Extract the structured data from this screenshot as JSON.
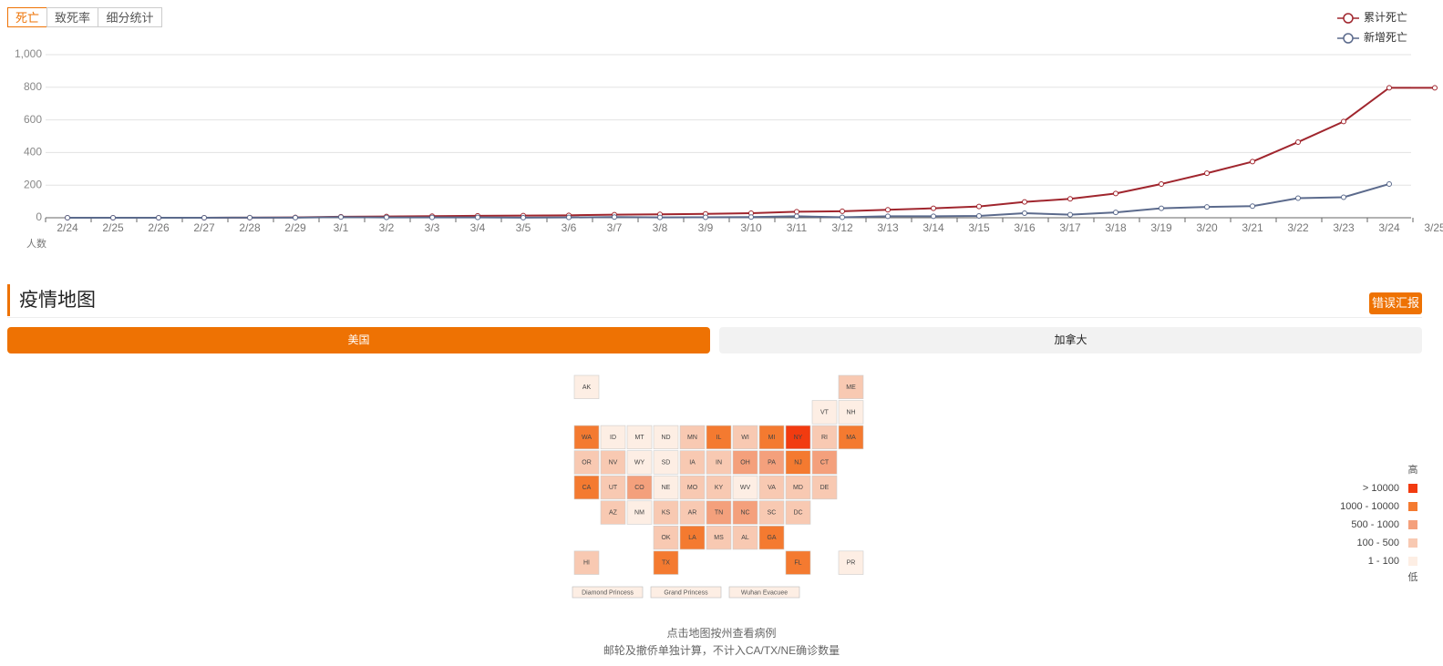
{
  "tabs": [
    "死亡",
    "致死率",
    "细分统计"
  ],
  "chart_data": {
    "type": "line",
    "y_label": "人数",
    "categories": [
      "2/24",
      "2/25",
      "2/26",
      "2/27",
      "2/28",
      "2/29",
      "3/1",
      "3/2",
      "3/3",
      "3/4",
      "3/5",
      "3/6",
      "3/7",
      "3/8",
      "3/9",
      "3/10",
      "3/11",
      "3/12",
      "3/13",
      "3/14",
      "3/15",
      "3/16",
      "3/17",
      "3/18",
      "3/19",
      "3/20",
      "3/21",
      "3/22",
      "3/23",
      "3/24",
      "3/25"
    ],
    "series": [
      {
        "name": "累计死亡",
        "color": "#a0262e",
        "values": [
          0,
          0,
          0,
          0,
          1,
          2,
          6,
          8,
          10,
          12,
          13,
          15,
          19,
          21,
          24,
          28,
          37,
          40,
          49,
          58,
          69,
          97,
          116,
          149,
          207,
          273,
          344,
          464,
          590,
          797,
          797
        ]
      },
      {
        "name": "新增死亡",
        "color": "#5b6a8c",
        "values": [
          0,
          0,
          0,
          0,
          1,
          1,
          4,
          2,
          2,
          2,
          1,
          2,
          4,
          2,
          3,
          4,
          9,
          3,
          9,
          9,
          11,
          28,
          19,
          33,
          58,
          66,
          71,
          120,
          126,
          207,
          null
        ]
      }
    ],
    "ylim": [
      0,
      1000
    ],
    "yticks": [
      0,
      200,
      400,
      600,
      800,
      {
        "value": 1000,
        "label": "1,000"
      }
    ],
    "grid": true,
    "legend": "top-right"
  },
  "section": {
    "title": "疫情地图",
    "report_button": "错误汇报",
    "region_tabs": [
      "美国",
      "加拿大"
    ]
  },
  "map": {
    "states": [
      {
        "label": "AK",
        "level": 4
      },
      {
        "label": "ME",
        "level": 3
      },
      {
        "label": "VT",
        "level": 4
      },
      {
        "label": "NH",
        "level": 4
      },
      {
        "label": "WA",
        "level": 1
      },
      {
        "label": "ID",
        "level": 4
      },
      {
        "label": "MT",
        "level": 4
      },
      {
        "label": "ND",
        "level": 4
      },
      {
        "label": "MN",
        "level": 3
      },
      {
        "label": "IL",
        "level": 1
      },
      {
        "label": "WI",
        "level": 3
      },
      {
        "label": "MI",
        "level": 1
      },
      {
        "label": "NY",
        "level": 0
      },
      {
        "label": "RI",
        "level": 3
      },
      {
        "label": "MA",
        "level": 1
      },
      {
        "label": "OR",
        "level": 3
      },
      {
        "label": "NV",
        "level": 3
      },
      {
        "label": "WY",
        "level": 4
      },
      {
        "label": "SD",
        "level": 4
      },
      {
        "label": "IA",
        "level": 3
      },
      {
        "label": "IN",
        "level": 3
      },
      {
        "label": "OH",
        "level": 2
      },
      {
        "label": "PA",
        "level": 2
      },
      {
        "label": "NJ",
        "level": 1
      },
      {
        "label": "CT",
        "level": 2
      },
      {
        "label": "CA",
        "level": 1
      },
      {
        "label": "UT",
        "level": 3
      },
      {
        "label": "CO",
        "level": 2
      },
      {
        "label": "NE",
        "level": 4
      },
      {
        "label": "MO",
        "level": 3
      },
      {
        "label": "KY",
        "level": 3
      },
      {
        "label": "WV",
        "level": 4
      },
      {
        "label": "VA",
        "level": 3
      },
      {
        "label": "MD",
        "level": 3
      },
      {
        "label": "DE",
        "level": 3
      },
      {
        "label": "AZ",
        "level": 3
      },
      {
        "label": "NM",
        "level": 4
      },
      {
        "label": "KS",
        "level": 3
      },
      {
        "label": "AR",
        "level": 3
      },
      {
        "label": "TN",
        "level": 2
      },
      {
        "label": "NC",
        "level": 2
      },
      {
        "label": "SC",
        "level": 3
      },
      {
        "label": "DC",
        "level": 3
      },
      {
        "label": "OK",
        "level": 3
      },
      {
        "label": "LA",
        "level": 1
      },
      {
        "label": "MS",
        "level": 3
      },
      {
        "label": "AL",
        "level": 3
      },
      {
        "label": "GA",
        "level": 1
      },
      {
        "label": "HI",
        "level": 3
      },
      {
        "label": "TX",
        "level": 1
      },
      {
        "label": "FL",
        "level": 1
      },
      {
        "label": "PR",
        "level": 4
      }
    ],
    "ships": [
      "Diamond Princess",
      "Grand Princess",
      "Wuhan Evacuee"
    ],
    "legend": {
      "high": "高",
      "low": "低",
      "levels": [
        {
          "label": "> 10000",
          "color": "#f23b10"
        },
        {
          "label": "1000 - 10000",
          "color": "#f47a30"
        },
        {
          "label": "500 - 1000",
          "color": "#f4a07c"
        },
        {
          "label": "100 - 500",
          "color": "#f8c9b2"
        },
        {
          "label": "1 - 100",
          "color": "#fdeee4"
        }
      ]
    }
  },
  "notes": [
    "点击地图按州查看病例",
    "邮轮及撤侨单独计算，不计入CA/TX/NE确诊数量"
  ]
}
